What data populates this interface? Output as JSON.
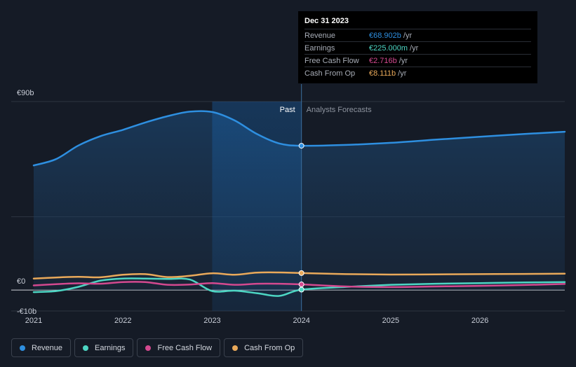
{
  "chart_data": {
    "type": "line",
    "title": "",
    "xlabel": "",
    "ylabel": "",
    "ylim": [
      -10,
      90
    ],
    "xlim": [
      2021.0,
      2026.95
    ],
    "y_ticks": [
      {
        "value": 90,
        "label": "€90b"
      },
      {
        "value": 0,
        "label": "€0"
      },
      {
        "value": -10,
        "label": "-€10b"
      }
    ],
    "x_ticks": [
      {
        "value": 2021,
        "label": "2021"
      },
      {
        "value": 2022,
        "label": "2022"
      },
      {
        "value": 2023,
        "label": "2023"
      },
      {
        "value": 2024,
        "label": "2024"
      },
      {
        "value": 2025,
        "label": "2025"
      },
      {
        "value": 2026,
        "label": "2026"
      }
    ],
    "divider_x": 2024.0,
    "highlight_start_x": 2023.0,
    "past_label": "Past",
    "forecast_label": "Analysts Forecasts",
    "series": [
      {
        "name": "Revenue",
        "color": "#2e8fe0",
        "area": true,
        "points": [
          [
            2021.0,
            59.5
          ],
          [
            2021.25,
            62.5
          ],
          [
            2021.5,
            69
          ],
          [
            2021.75,
            73.5
          ],
          [
            2022.0,
            76.5
          ],
          [
            2022.25,
            80
          ],
          [
            2022.5,
            83
          ],
          [
            2022.75,
            85.2
          ],
          [
            2023.0,
            85
          ],
          [
            2023.25,
            81
          ],
          [
            2023.5,
            74.5
          ],
          [
            2023.75,
            70
          ],
          [
            2024.0,
            68.9
          ],
          [
            2024.5,
            69.3
          ],
          [
            2025.0,
            70.3
          ],
          [
            2025.5,
            71.8
          ],
          [
            2026.0,
            73.2
          ],
          [
            2026.5,
            74.5
          ],
          [
            2026.95,
            75.6
          ]
        ]
      },
      {
        "name": "Earnings",
        "color": "#4dd6c4",
        "area": false,
        "points": [
          [
            2021.0,
            -1
          ],
          [
            2021.25,
            -0.5
          ],
          [
            2021.5,
            1.5
          ],
          [
            2021.75,
            4.5
          ],
          [
            2022.0,
            5.5
          ],
          [
            2022.25,
            5.5
          ],
          [
            2022.5,
            5.3
          ],
          [
            2022.75,
            5
          ],
          [
            2023.0,
            -0.5
          ],
          [
            2023.25,
            -0.3
          ],
          [
            2023.5,
            -1.5
          ],
          [
            2023.75,
            -2.8
          ],
          [
            2024.0,
            0.2
          ],
          [
            2024.5,
            1.5
          ],
          [
            2025.0,
            2.5
          ],
          [
            2025.5,
            3
          ],
          [
            2026.0,
            3.3
          ],
          [
            2026.5,
            3.6
          ],
          [
            2026.95,
            3.8
          ]
        ]
      },
      {
        "name": "Free Cash Flow",
        "color": "#d3498f",
        "area": false,
        "points": [
          [
            2021.0,
            2.2
          ],
          [
            2021.25,
            2.8
          ],
          [
            2021.5,
            3.2
          ],
          [
            2021.75,
            3
          ],
          [
            2022.0,
            3.8
          ],
          [
            2022.25,
            3.8
          ],
          [
            2022.5,
            2.5
          ],
          [
            2022.75,
            2.6
          ],
          [
            2023.0,
            3.3
          ],
          [
            2023.25,
            2.5
          ],
          [
            2023.5,
            3
          ],
          [
            2023.75,
            3
          ],
          [
            2024.0,
            2.7
          ],
          [
            2024.5,
            1.7
          ],
          [
            2025.0,
            1.4
          ],
          [
            2025.5,
            1.7
          ],
          [
            2026.0,
            2
          ],
          [
            2026.5,
            2.4
          ],
          [
            2026.95,
            2.9
          ]
        ]
      },
      {
        "name": "Cash From Op",
        "color": "#e9a95a",
        "area": false,
        "points": [
          [
            2021.0,
            5.5
          ],
          [
            2021.25,
            6
          ],
          [
            2021.5,
            6.3
          ],
          [
            2021.75,
            6.1
          ],
          [
            2022.0,
            7.3
          ],
          [
            2022.25,
            7.6
          ],
          [
            2022.5,
            6.2
          ],
          [
            2022.75,
            6.8
          ],
          [
            2023.0,
            8
          ],
          [
            2023.25,
            7.3
          ],
          [
            2023.5,
            8.3
          ],
          [
            2023.75,
            8.4
          ],
          [
            2024.0,
            8.1
          ],
          [
            2024.5,
            7.6
          ],
          [
            2025.0,
            7.4
          ],
          [
            2025.5,
            7.5
          ],
          [
            2026.0,
            7.6
          ],
          [
            2026.5,
            7.7
          ],
          [
            2026.95,
            7.8
          ]
        ]
      }
    ]
  },
  "tooltip": {
    "date": "Dec 31 2023",
    "rows": [
      {
        "label": "Revenue",
        "value": "€68.902b",
        "unit": "/yr",
        "color": "#2e8fe0"
      },
      {
        "label": "Earnings",
        "value": "€225.000m",
        "unit": "/yr",
        "color": "#4dd6c4"
      },
      {
        "label": "Free Cash Flow",
        "value": "€2.716b",
        "unit": "/yr",
        "color": "#d3498f"
      },
      {
        "label": "Cash From Op",
        "value": "€8.111b",
        "unit": "/yr",
        "color": "#e9a95a"
      }
    ]
  },
  "legend": [
    {
      "label": "Revenue",
      "color": "#2e8fe0"
    },
    {
      "label": "Earnings",
      "color": "#4dd6c4"
    },
    {
      "label": "Free Cash Flow",
      "color": "#d3498f"
    },
    {
      "label": "Cash From Op",
      "color": "#e9a95a"
    }
  ]
}
